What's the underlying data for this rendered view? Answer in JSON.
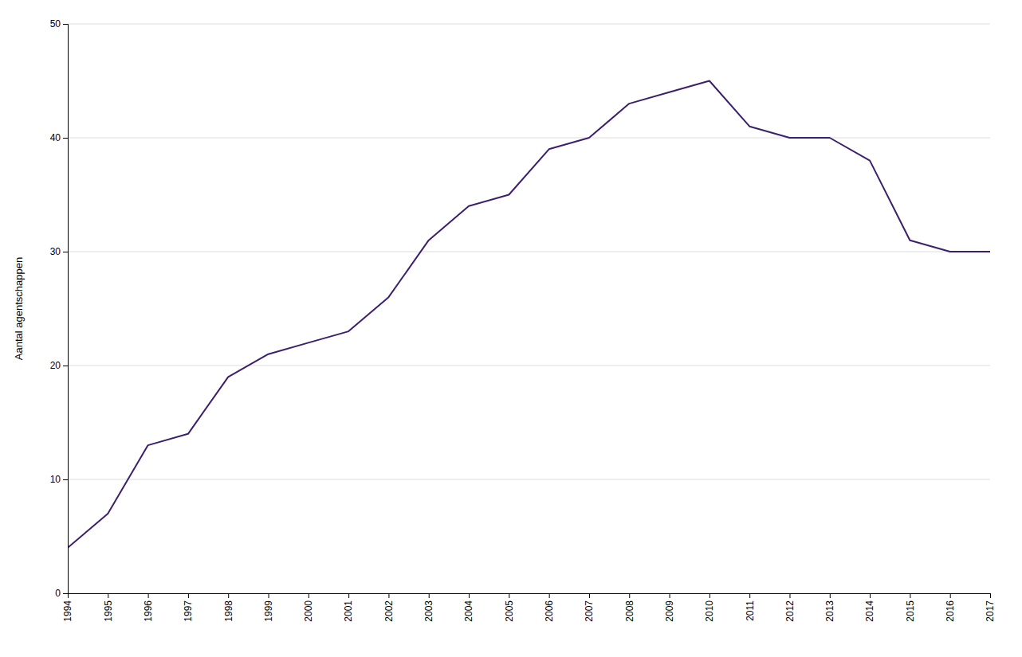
{
  "chart_data": {
    "type": "line",
    "ylabel": "Aantal agentschappen",
    "x": [
      1994,
      1995,
      1996,
      1997,
      1998,
      1999,
      2000,
      2001,
      2002,
      2003,
      2004,
      2005,
      2006,
      2007,
      2008,
      2009,
      2010,
      2011,
      2012,
      2013,
      2014,
      2015,
      2016,
      2017
    ],
    "values": [
      4,
      7,
      13,
      14,
      19,
      21,
      22,
      23,
      26,
      31,
      34,
      35,
      39,
      40,
      43,
      44,
      45,
      41,
      40,
      40,
      38,
      31,
      30,
      30
    ],
    "color": "#3B1F6E",
    "xlim": [
      1994,
      2017
    ],
    "xticks": [
      1994,
      1995,
      1996,
      1997,
      1998,
      1999,
      2000,
      2001,
      2002,
      2003,
      2004,
      2005,
      2006,
      2007,
      2008,
      2009,
      2010,
      2011,
      2012,
      2013,
      2014,
      2015,
      2016,
      2017
    ],
    "ylim": [
      0,
      50
    ],
    "yticks": [
      0,
      10,
      20,
      30,
      40,
      50
    ],
    "grid": true
  }
}
